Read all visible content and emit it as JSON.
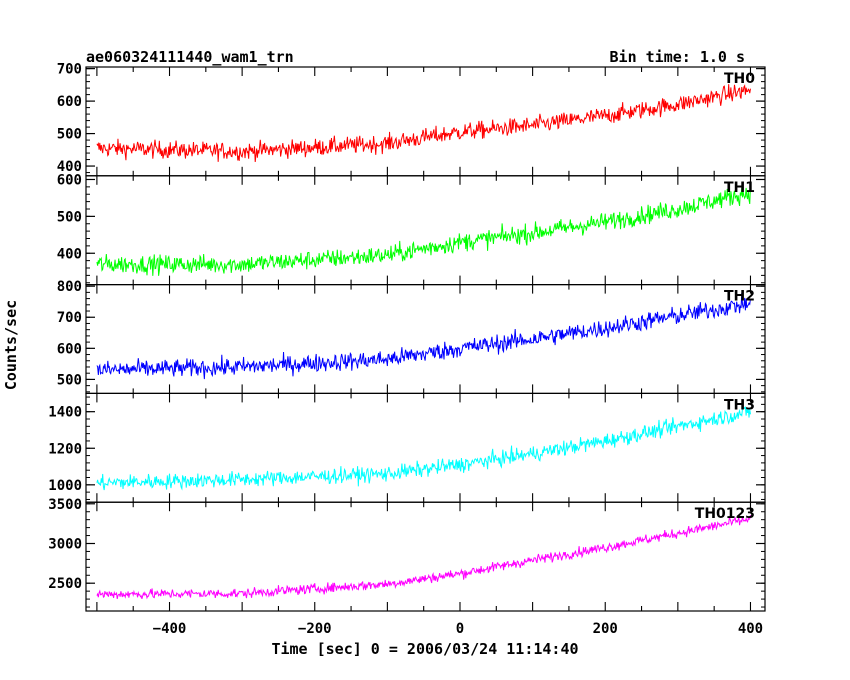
{
  "header": {
    "title": "ae060324111440_wam1_trn",
    "bin_time": "Bin time: 1.0 s"
  },
  "chart_data": {
    "type": "line",
    "xlabel": "Time [sec] 0 = 2006/03/24 11:14:40",
    "ylabel": "Counts/sec",
    "xlim": [
      -515,
      420
    ],
    "x_ticks": [
      -400,
      -200,
      0,
      200,
      400
    ],
    "x_tick_labels": [
      "−400",
      "−200",
      "0",
      "200",
      "400"
    ],
    "x_data_range": [
      -500,
      400
    ],
    "bin_seconds": 1.0,
    "series": [
      {
        "name": "TH0",
        "color": "#ff0000",
        "ylim": [
          370,
          705
        ],
        "y_ticks": [
          400,
          500,
          600,
          700
        ],
        "trend": [
          [
            -500,
            455
          ],
          [
            -300,
            445
          ],
          [
            -100,
            470
          ],
          [
            0,
            505
          ],
          [
            100,
            525
          ],
          [
            200,
            555
          ],
          [
            300,
            590
          ],
          [
            400,
            635
          ]
        ],
        "noise_amplitude": 48
      },
      {
        "name": "TH1",
        "color": "#00ff00",
        "ylim": [
          315,
          610
        ],
        "y_ticks": [
          400,
          500,
          600
        ],
        "trend": [
          [
            -500,
            370
          ],
          [
            -300,
            370
          ],
          [
            -100,
            395
          ],
          [
            0,
            430
          ],
          [
            100,
            455
          ],
          [
            200,
            485
          ],
          [
            300,
            520
          ],
          [
            400,
            565
          ]
        ],
        "noise_amplitude": 45
      },
      {
        "name": "TH2",
        "color": "#0000ff",
        "ylim": [
          455,
          805
        ],
        "y_ticks": [
          500,
          600,
          700,
          800
        ],
        "trend": [
          [
            -500,
            530
          ],
          [
            -300,
            540
          ],
          [
            -100,
            565
          ],
          [
            0,
            600
          ],
          [
            100,
            630
          ],
          [
            200,
            665
          ],
          [
            300,
            705
          ],
          [
            400,
            745
          ]
        ],
        "noise_amplitude": 52
      },
      {
        "name": "TH3",
        "color": "#00ffff",
        "ylim": [
          905,
          1500
        ],
        "y_ticks": [
          1000,
          1200,
          1400
        ],
        "trend": [
          [
            -500,
            1010
          ],
          [
            -300,
            1030
          ],
          [
            -100,
            1060
          ],
          [
            0,
            1110
          ],
          [
            100,
            1170
          ],
          [
            200,
            1240
          ],
          [
            300,
            1320
          ],
          [
            400,
            1400
          ]
        ],
        "noise_amplitude": 75
      },
      {
        "name": "TH0123",
        "color": "#ff00ff",
        "ylim": [
          2150,
          3520
        ],
        "y_ticks": [
          2500,
          3000,
          3500
        ],
        "trend": [
          [
            -500,
            2360
          ],
          [
            -300,
            2370
          ],
          [
            -100,
            2490
          ],
          [
            0,
            2620
          ],
          [
            100,
            2790
          ],
          [
            200,
            2950
          ],
          [
            300,
            3130
          ],
          [
            400,
            3310
          ]
        ],
        "noise_amplitude": 110
      }
    ]
  }
}
